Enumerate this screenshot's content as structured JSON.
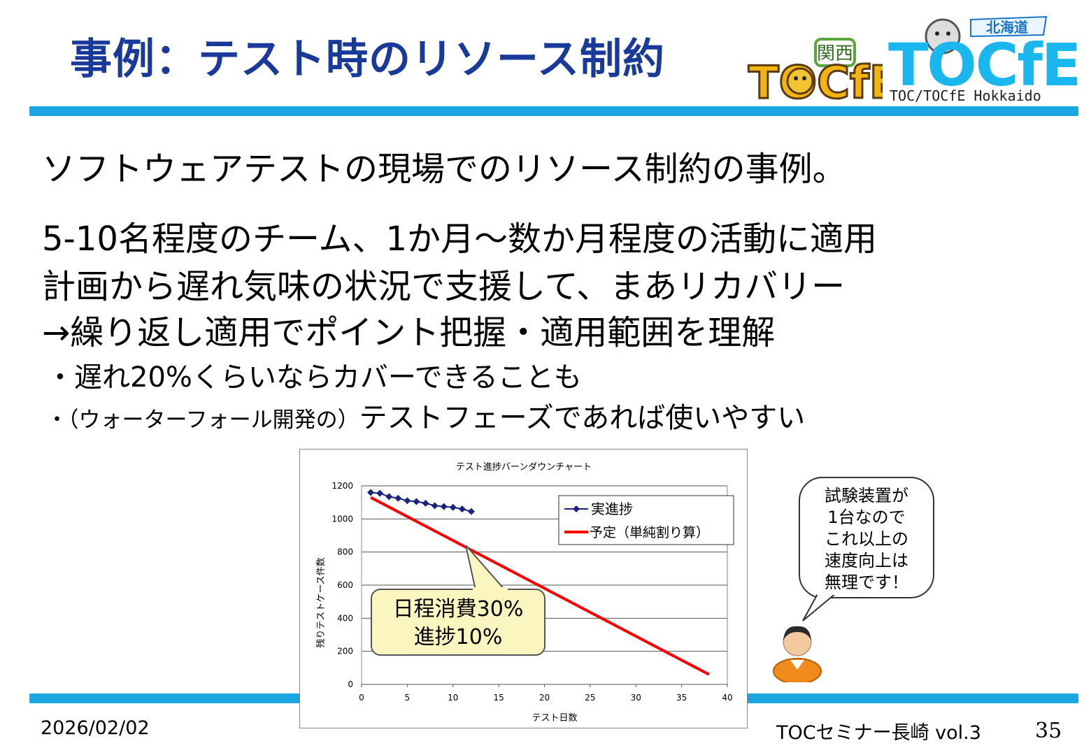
{
  "slide": {
    "title": "事例：テスト時のリソース制約",
    "line1": "ソフトウェアテストの現場でのリソース制約の事例。",
    "line2": "5-10名程度のチーム、1か月～数か月程度の活動に適用",
    "line3": "計画から遅れ気味の状況で支援して、まあリカバリー",
    "line4": "→繰り返し適用でポイント把握・適用範囲を理解",
    "bullet1": "・遅れ20%くらいならカバーできることも",
    "bullet2_small": "・（ウォーターフォール開発の）",
    "bullet2_large": "テストフェーズであれば使いやすい",
    "callout_line1": "日程消費30%",
    "callout_line2": "進捗10%",
    "speech_lines": [
      "試験装置が",
      "1台なので",
      "これ以上の",
      "速度向上は",
      "無理です！"
    ],
    "footer_date": "2026/02/02",
    "footer_event": "TOCセミナー長崎 vol.3",
    "page_number": "35"
  },
  "logos": {
    "kansai_text": "TOCfE",
    "kansai_badge": "関西",
    "hokkaido_text": "TOCfE",
    "hokkaido_flag": "北海道",
    "hokkaido_caption": "TOC/TOCfE Hokkaido"
  },
  "colors": {
    "title": "#1a3a9a",
    "bar": "#1aa6e0",
    "actual_series": "#1a237e",
    "plan_series": "#ff0000",
    "callout_bg": "#fbf6c0"
  },
  "chart_data": {
    "type": "line",
    "title": "テスト進捗バーンダウンチャート",
    "xlabel": "テスト日数",
    "ylabel": "残りテストケース件数",
    "xlim": [
      0,
      40
    ],
    "ylim": [
      0,
      1200
    ],
    "xticks": [
      0,
      5,
      10,
      15,
      20,
      25,
      30,
      35,
      40
    ],
    "yticks": [
      0,
      200,
      400,
      600,
      800,
      1000,
      1200
    ],
    "grid": true,
    "legend_position": "top-right",
    "series": [
      {
        "name": "実進捗",
        "marker": "diamond",
        "x": [
          1,
          2,
          3,
          4,
          5,
          6,
          7,
          8,
          9,
          10,
          11,
          12
        ],
        "y": [
          1160,
          1155,
          1135,
          1125,
          1110,
          1105,
          1095,
          1080,
          1075,
          1070,
          1060,
          1045
        ]
      },
      {
        "name": "予定（単純割り算）",
        "marker": "none",
        "x": [
          1,
          38
        ],
        "y": [
          1130,
          60
        ]
      }
    ]
  }
}
